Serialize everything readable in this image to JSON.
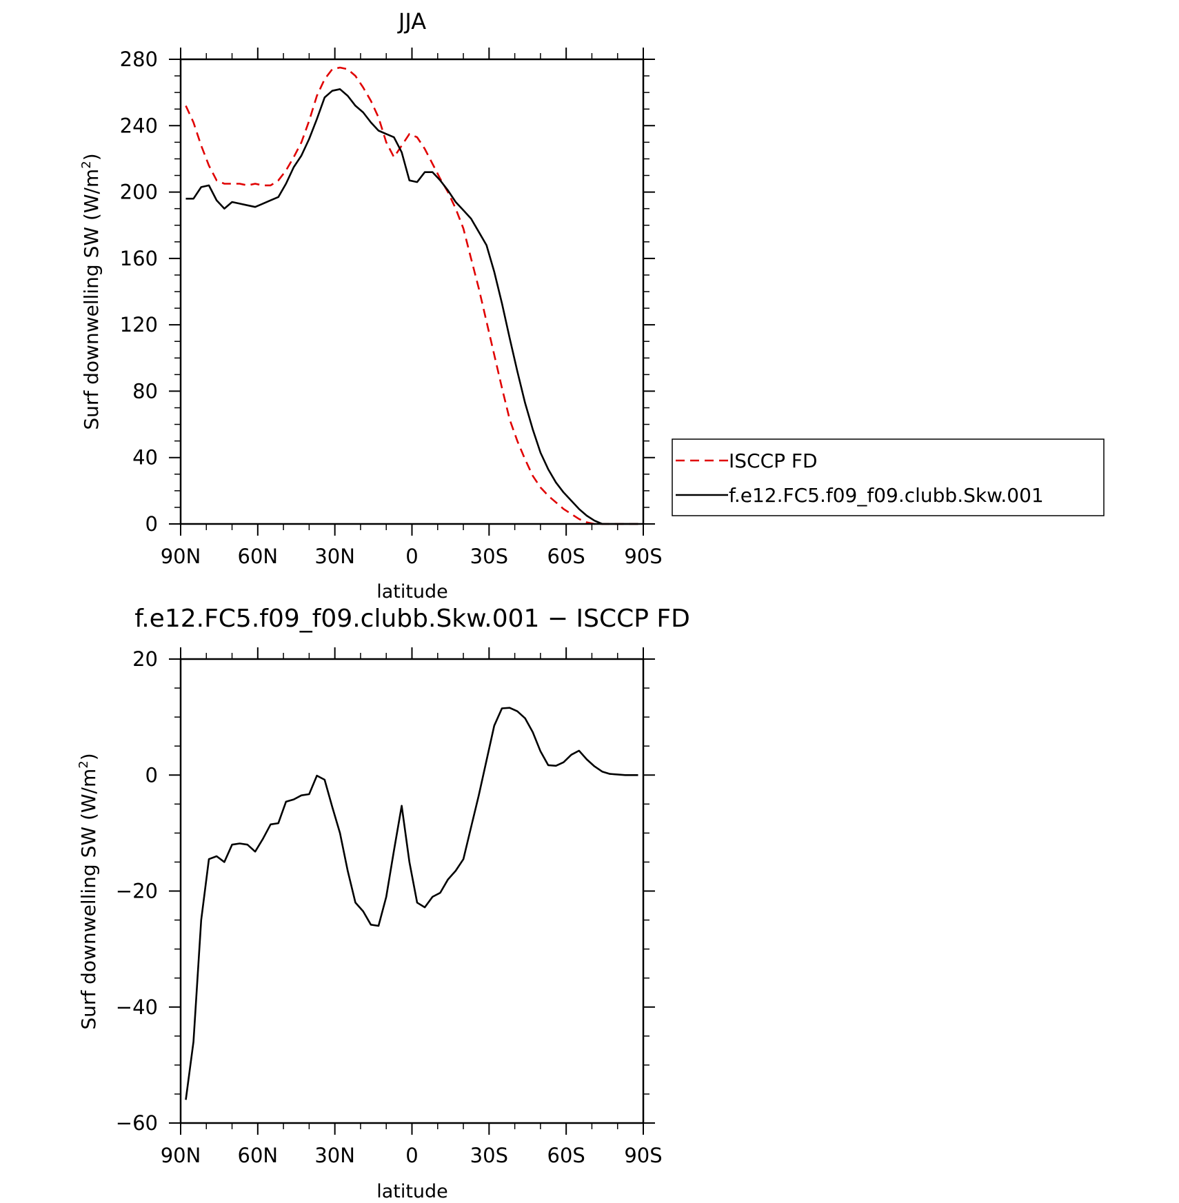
{
  "chart_data": [
    {
      "type": "line",
      "title": "JJA",
      "xlabel": "latitude",
      "ylabel": "Surf downwelling SW (W/m²)",
      "ylabel_main": "Surf downwelling SW (W/m",
      "ylabel_sup": "2",
      "ylabel_close": ")",
      "xlim": [
        90,
        -90
      ],
      "ylim": [
        0,
        280
      ],
      "x_ticks": [
        90,
        60,
        30,
        0,
        -30,
        -60,
        -90
      ],
      "x_tick_labels": [
        "90N",
        "60N",
        "30N",
        "0",
        "30S",
        "60S",
        "90S"
      ],
      "y_ticks": [
        0,
        40,
        80,
        120,
        160,
        200,
        240,
        280
      ],
      "y_tick_labels": [
        "0",
        "40",
        "80",
        "120",
        "160",
        "200",
        "240",
        "280"
      ],
      "grid": false,
      "legend_position": "right-outside",
      "series": [
        {
          "name": "ISCCP FD",
          "color": "#e00000",
          "dash": "dashed",
          "x": [
            88,
            85,
            82,
            79,
            76,
            73,
            70,
            67,
            64,
            61,
            58,
            55,
            52,
            49,
            46,
            43,
            40,
            37,
            34,
            31,
            28,
            25,
            22,
            19,
            16,
            13,
            10,
            7,
            4,
            1,
            -2,
            -5,
            -8,
            -11,
            -14,
            -17,
            -20,
            -23,
            -26,
            -29,
            -32,
            -35,
            -38,
            -41,
            -44,
            -47,
            -50,
            -53,
            -56,
            -59,
            -62,
            -65,
            -68,
            -71,
            -74,
            -77,
            -80,
            -83,
            -86,
            -88
          ],
          "y": [
            252,
            242,
            228,
            216,
            207,
            205,
            205,
            205,
            204,
            205,
            204,
            204,
            207,
            213,
            221,
            230,
            243,
            258,
            268,
            274,
            275,
            274,
            270,
            263,
            255,
            245,
            230,
            221,
            228,
            235,
            233,
            226,
            217,
            208,
            200,
            190,
            178,
            160,
            142,
            122,
            102,
            82,
            63,
            50,
            39,
            29,
            22,
            17,
            13,
            9,
            6,
            3,
            1,
            0,
            0,
            0,
            0,
            0,
            0,
            0
          ]
        },
        {
          "name": "f.e12.FC5.f09_f09.clubb.Skw.001",
          "color": "#000000",
          "dash": "solid",
          "x": [
            88,
            85,
            82,
            79,
            76,
            73,
            70,
            67,
            64,
            61,
            58,
            55,
            52,
            49,
            46,
            43,
            40,
            37,
            34,
            31,
            28,
            25,
            22,
            19,
            16,
            13,
            10,
            7,
            4,
            1,
            -2,
            -5,
            -8,
            -11,
            -14,
            -17,
            -20,
            -23,
            -26,
            -29,
            -32,
            -35,
            -38,
            -41,
            -44,
            -47,
            -50,
            -53,
            -56,
            -59,
            -62,
            -65,
            -68,
            -71,
            -74,
            -77,
            -80,
            -83,
            -86,
            -88
          ],
          "y": [
            196,
            196,
            203,
            204,
            195,
            190,
            194,
            193,
            192,
            191,
            193,
            195,
            197,
            205,
            215,
            222,
            232,
            244,
            257,
            261,
            262,
            258,
            252,
            248,
            242,
            237,
            235,
            233,
            224,
            207,
            206,
            212,
            212,
            207,
            201,
            194,
            189,
            184,
            176,
            168,
            152,
            133,
            112,
            92,
            73,
            57,
            43,
            33,
            25,
            19,
            14,
            9,
            5,
            2,
            0,
            0,
            0,
            0,
            0,
            0
          ]
        }
      ]
    },
    {
      "type": "line",
      "title": "f.e12.FC5.f09_f09.clubb.Skw.001 − ISCCP FD",
      "xlabel": "latitude",
      "ylabel": "Surf downwelling SW (W/m²)",
      "ylabel_main": "Surf downwelling SW (W/m",
      "ylabel_sup": "2",
      "ylabel_close": ")",
      "xlim": [
        90,
        -90
      ],
      "ylim": [
        -60,
        20
      ],
      "x_ticks": [
        90,
        60,
        30,
        0,
        -30,
        -60,
        -90
      ],
      "x_tick_labels": [
        "90N",
        "60N",
        "30N",
        "0",
        "30S",
        "60S",
        "90S"
      ],
      "y_ticks": [
        -60,
        -40,
        -20,
        0,
        20
      ],
      "y_tick_labels": [
        "−60",
        "−40",
        "−20",
        "0",
        "20"
      ],
      "grid": false,
      "series": [
        {
          "color": "#000000",
          "dash": "solid",
          "x": [
            88,
            85,
            82,
            79,
            76,
            73,
            70,
            67,
            64,
            61,
            58,
            55,
            52,
            49,
            46,
            43,
            40,
            37,
            34,
            31,
            28,
            25,
            22,
            19,
            16,
            13,
            10,
            7,
            4,
            1,
            -2,
            -5,
            -8,
            -11,
            -14,
            -17,
            -20,
            -23,
            -26,
            -29,
            -32,
            -35,
            -38,
            -41,
            -44,
            -47,
            -50,
            -53,
            -56,
            -59,
            -62,
            -65,
            -68,
            -71,
            -74,
            -77,
            -80,
            -83,
            -86,
            -88
          ],
          "y": [
            -56,
            -46,
            -25,
            -14.5,
            -14,
            -15,
            -12,
            -11.8,
            -12,
            -13.2,
            -11,
            -8.5,
            -8.3,
            -4.6,
            -4.2,
            -3.5,
            -3.3,
            -0.1,
            -0.8,
            -5.5,
            -10,
            -16.5,
            -22,
            -23.5,
            -25.8,
            -26,
            -21,
            -13,
            -5.3,
            -15,
            -22,
            -22.8,
            -21,
            -20.3,
            -18,
            -16.5,
            -14.5,
            -9,
            -3.5,
            2.5,
            8.5,
            11.5,
            11.6,
            11,
            9.8,
            7.4,
            4.1,
            1.7,
            1.6,
            2.2,
            3.5,
            4.2,
            2.7,
            1.5,
            0.6,
            0.2,
            0.1,
            0,
            0,
            0
          ]
        }
      ]
    }
  ]
}
